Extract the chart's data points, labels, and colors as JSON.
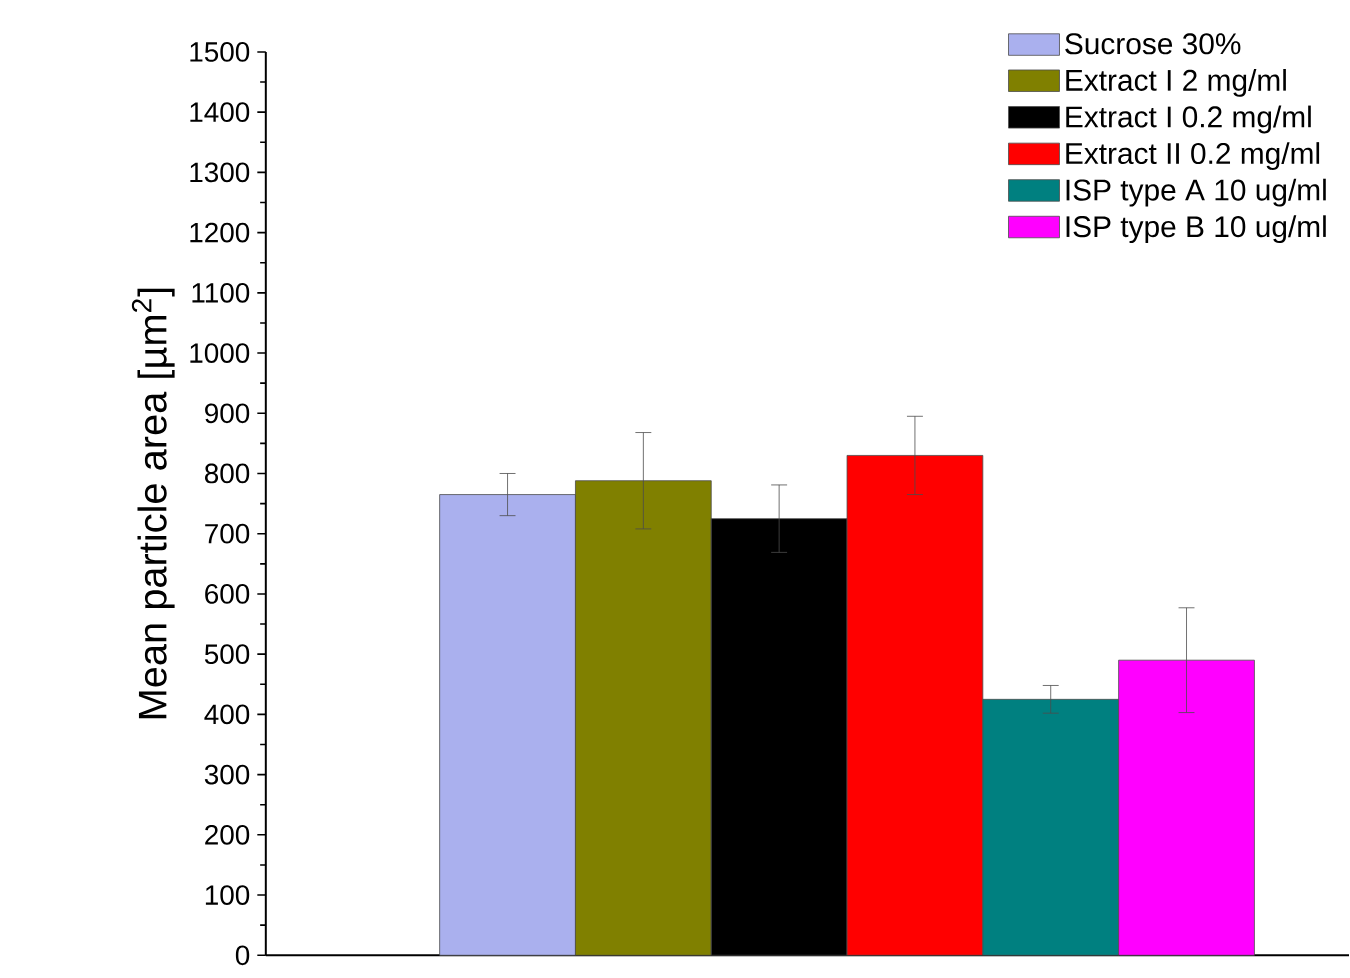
{
  "chart_data": {
    "type": "bar",
    "ylabel": "Mean particle area [µm$^{2}$]",
    "categories": [
      null
    ],
    "series": [
      {
        "name": "Sucrose 30%",
        "color": "#aab0ee",
        "values": [
          765
        ],
        "errors": [
          35
        ]
      },
      {
        "name": "Extract I 2 mg/ml",
        "color": "#808000",
        "values": [
          788
        ],
        "errors": [
          80
        ]
      },
      {
        "name": "Extract I 0.2 mg/ml",
        "color": "#000000",
        "values": [
          725
        ],
        "errors": [
          56
        ]
      },
      {
        "name": "Extract II 0.2 mg/ml",
        "color": "#ff0000",
        "values": [
          830
        ],
        "errors": [
          65
        ]
      },
      {
        "name": "ISP type A 10 ug/ml",
        "color": "#008080",
        "values": [
          425
        ],
        "errors": [
          23
        ]
      },
      {
        "name": "ISP type B 10 ug/ml",
        "color": "#ff00ff",
        "values": [
          490
        ],
        "errors": [
          87
        ]
      }
    ],
    "ylim": [
      0,
      1500
    ],
    "yticks": [
      0,
      100,
      200,
      300,
      400,
      500,
      600,
      700,
      800,
      900,
      1000,
      1100,
      1200,
      1300,
      1400,
      1500
    ],
    "legend": "top right"
  }
}
